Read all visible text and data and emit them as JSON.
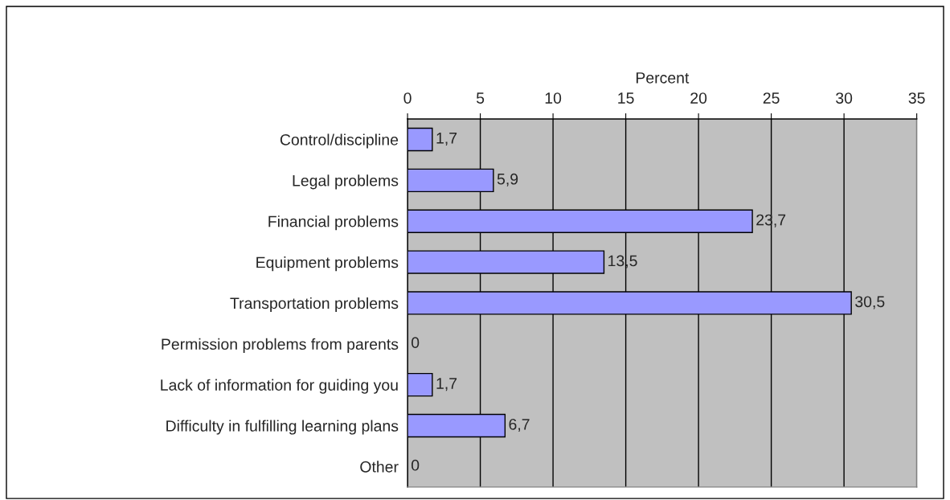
{
  "chart_data": {
    "type": "bar",
    "orientation": "horizontal",
    "xlabel": "Percent",
    "categories": [
      "Control/discipline",
      "Legal problems",
      "Financial problems",
      "Equipment problems",
      "Transportation problems",
      "Permission problems from parents",
      "Lack of information for guiding you",
      "Difficulty in fulfilling learning plans",
      "Other"
    ],
    "values": [
      1.7,
      5.9,
      23.7,
      13.5,
      30.5,
      0,
      1.7,
      6.7,
      0
    ],
    "value_labels": [
      "1,7",
      "5,9",
      "23,7",
      "13,5",
      "30,5",
      "0",
      "1,7",
      "6,7",
      "0"
    ],
    "color": "#9999ff",
    "xlim": [
      0,
      35
    ],
    "xticks": [
      0,
      5,
      10,
      15,
      20,
      25,
      30,
      35
    ],
    "grid": "x",
    "legend": false
  }
}
